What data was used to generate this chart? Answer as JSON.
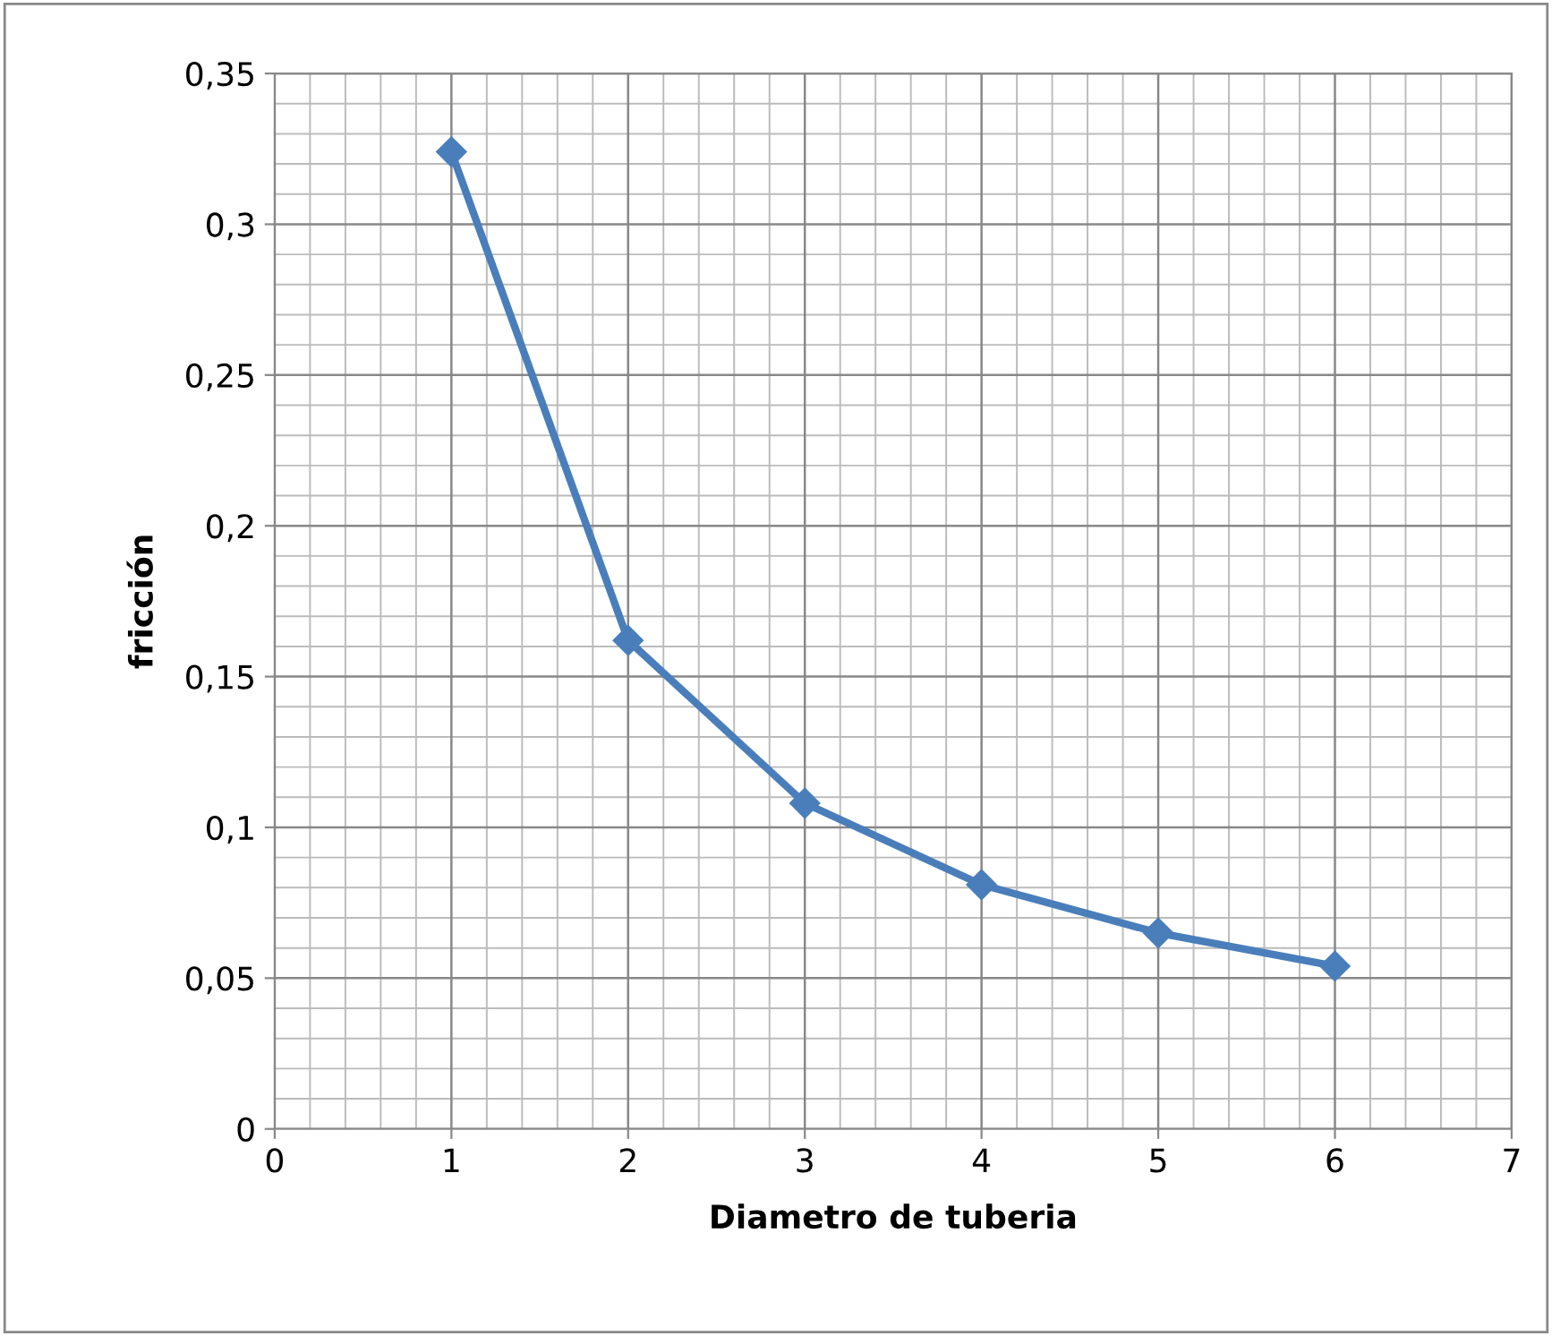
{
  "chart_data": {
    "type": "line",
    "xlabel": "Diametro de tuberia",
    "ylabel": "fricción",
    "x": [
      1,
      2,
      3,
      4,
      5,
      6
    ],
    "series": [
      {
        "color": "#4a7ebb",
        "values": [
          0.324,
          0.162,
          0.108,
          0.081,
          0.065,
          0.054
        ]
      }
    ],
    "xlim": [
      0,
      7
    ],
    "xticks": [
      0,
      1,
      2,
      3,
      4,
      5,
      6,
      7
    ],
    "ylim": [
      0,
      0.35
    ],
    "yticks": [
      {
        "value": 0,
        "label": "0"
      },
      {
        "value": 0.05,
        "label": "0,05"
      },
      {
        "value": 0.1,
        "label": "0,1"
      },
      {
        "value": 0.15,
        "label": "0,15"
      },
      {
        "value": 0.2,
        "label": "0,2"
      },
      {
        "value": 0.25,
        "label": "0,25"
      },
      {
        "value": 0.3,
        "label": "0,3"
      },
      {
        "value": 0.35,
        "label": "0,35"
      }
    ],
    "grid": true,
    "marker": "diamond",
    "line_style": "solid"
  }
}
